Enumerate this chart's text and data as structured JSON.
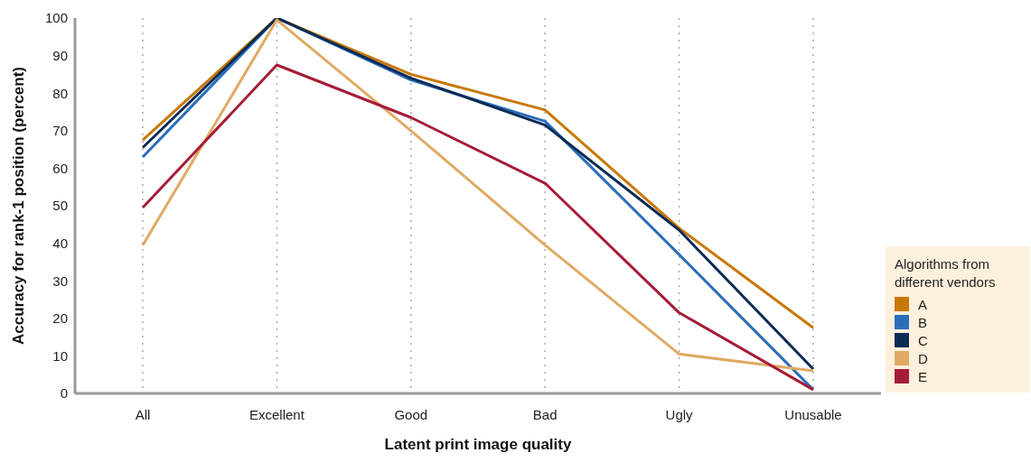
{
  "chart_data": {
    "type": "line",
    "xlabel": "Latent print image quality",
    "ylabel": "Accuracy for rank-1 position (percent)",
    "legend_title": "Algorithms from different vendors",
    "categories": [
      "All",
      "Excellent",
      "Good",
      "Bad",
      "Ugly",
      "Unusable"
    ],
    "series": [
      {
        "name": "A",
        "color": "#c87800",
        "values": [
          67.5,
          100,
          85,
          75.5,
          44,
          17.5
        ]
      },
      {
        "name": "B",
        "color": "#2a6ebb",
        "values": [
          63,
          100,
          83.5,
          72.5,
          37,
          1
        ]
      },
      {
        "name": "C",
        "color": "#0b2a55",
        "values": [
          65.5,
          100,
          84,
          71.5,
          43.5,
          6.5
        ]
      },
      {
        "name": "D",
        "color": "#e0aa63",
        "values": [
          39.5,
          99.5,
          70,
          39.5,
          10.5,
          6
        ]
      },
      {
        "name": "E",
        "color": "#a61c37",
        "values": [
          49.5,
          87.5,
          73.5,
          56,
          21.5,
          1
        ]
      }
    ],
    "ylim": [
      0,
      100
    ],
    "yticks": [
      0,
      10,
      20,
      30,
      40,
      50,
      60,
      70,
      80,
      90,
      100
    ],
    "grid": "x",
    "legend": "right",
    "marker": "none",
    "line_style": "solid"
  }
}
